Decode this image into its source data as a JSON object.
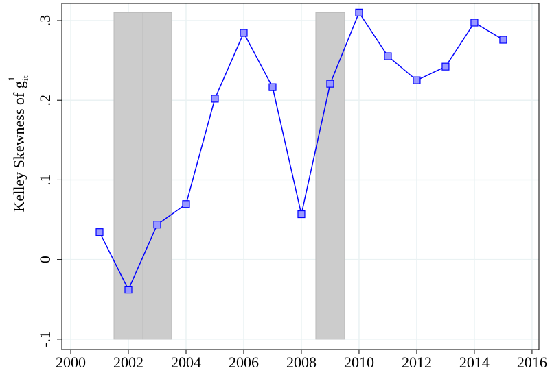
{
  "chart_data": {
    "type": "line",
    "y_label": "Kelley Skewness of g",
    "y_label_sup": "1",
    "y_label_sub": "it",
    "x": [
      2001,
      2002,
      2003,
      2004,
      2005,
      2006,
      2007,
      2008,
      2009,
      2010,
      2011,
      2012,
      2013,
      2014,
      2015
    ],
    "series": [
      {
        "color": "#0000ff",
        "marker_fill": "#9999ff",
        "values": [
          0.0344,
          -0.0378,
          0.0439,
          0.0696,
          0.202,
          0.2845,
          0.2164,
          0.0569,
          0.2207,
          0.31,
          0.2552,
          0.225,
          0.2422,
          0.2974,
          0.2759
        ]
      }
    ],
    "shaded_spans": [
      {
        "x": [
          2001.5,
          2002.5
        ],
        "y": [
          -0.1,
          0.31
        ]
      },
      {
        "x": [
          2002.5,
          2003.5
        ],
        "y": [
          -0.1,
          0.31
        ]
      },
      {
        "x": [
          2008.5,
          2009.5
        ],
        "y": [
          -0.1,
          0.31
        ]
      }
    ],
    "shade_color": "#cccccc",
    "xlim": [
      1999.69,
      2016.24
    ],
    "ylim": [
      -0.113,
      0.3215
    ],
    "xticks": [
      2000,
      2002,
      2004,
      2006,
      2008,
      2010,
      2012,
      2014,
      2016
    ],
    "yticks": [
      {
        "value": -0.1,
        "label": "-.1"
      },
      0,
      {
        "value": 0.1,
        "label": ".1"
      },
      {
        "value": 0.2,
        "label": ".2"
      },
      {
        "value": 0.3,
        "label": ".3"
      }
    ],
    "grid": true
  }
}
